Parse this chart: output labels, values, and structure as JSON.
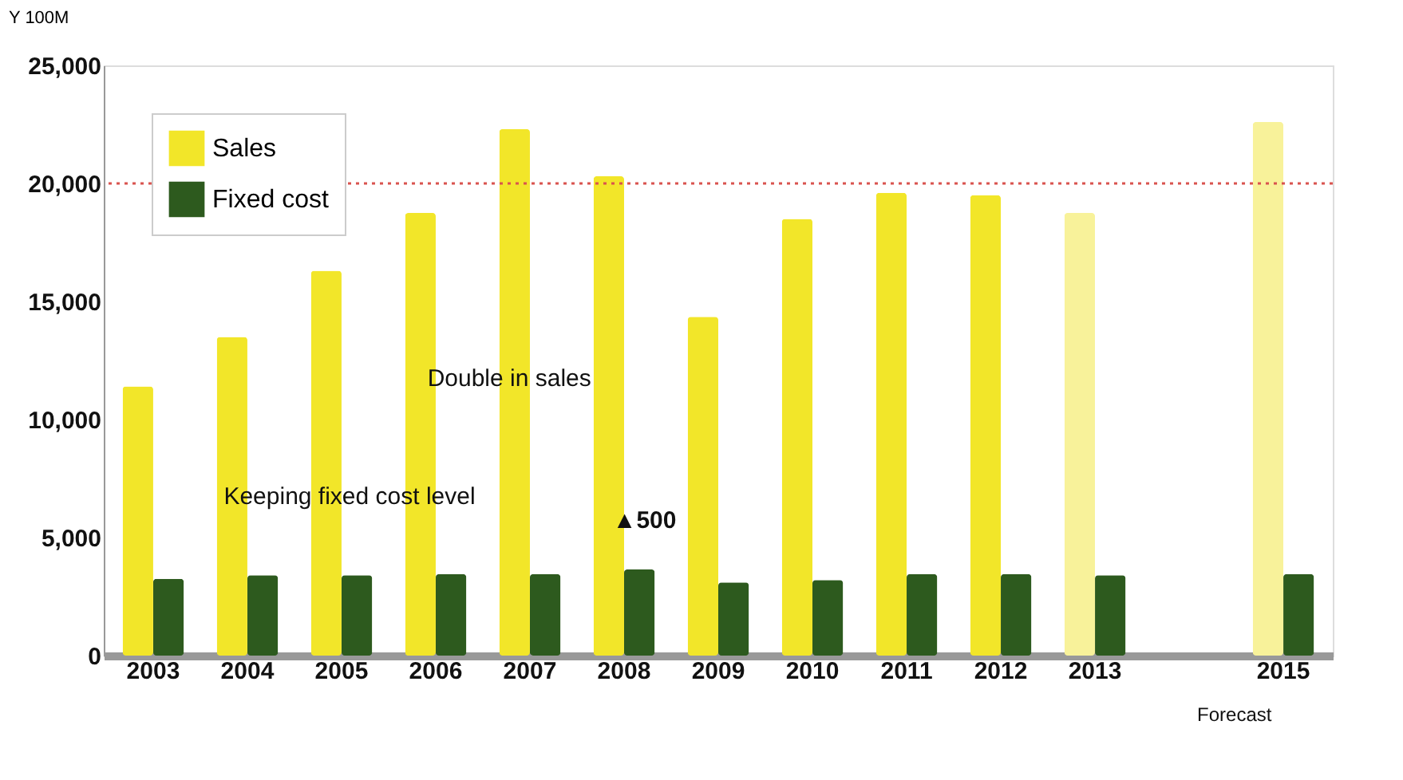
{
  "chart_data": {
    "type": "bar",
    "ylabel": "Y 100M",
    "categories": [
      "2003",
      "2004",
      "2005",
      "2006",
      "2007",
      "2008",
      "2009",
      "2010",
      "2011",
      "2012",
      "2013",
      null,
      "2015"
    ],
    "series": [
      {
        "name": "Sales",
        "color": "#f2e629",
        "colors": [
          "#f2e629",
          "#f2e629",
          "#f2e629",
          "#f2e629",
          "#f2e629",
          "#f2e629",
          "#f2e629",
          "#f2e629",
          "#f2e629",
          "#f2e629",
          "#f8f29a",
          null,
          "#f8f29a"
        ],
        "values": [
          11400,
          13500,
          16300,
          18750,
          22300,
          20300,
          14350,
          18500,
          19600,
          19500,
          18750,
          null,
          22600
        ]
      },
      {
        "name": "Fixed cost",
        "color": "#2d5a1e",
        "values": [
          3250,
          3400,
          3400,
          3450,
          3450,
          3650,
          3100,
          3200,
          3450,
          3450,
          3400,
          null,
          3450
        ]
      }
    ],
    "ylim": [
      0,
      25000
    ],
    "yticks": [
      {
        "value": 0,
        "label": "0"
      },
      {
        "value": 5000,
        "label": "5,000"
      },
      {
        "value": 10000,
        "label": "10,000"
      },
      {
        "value": 15000,
        "label": "15,000"
      },
      {
        "value": 20000,
        "label": "20,000"
      },
      {
        "value": 25000,
        "label": "25,000"
      }
    ],
    "ref_lines": [
      {
        "axis": "y",
        "value": 20000,
        "color": "#d9534f",
        "line_style": "dotted"
      }
    ],
    "annotations": [
      "Double in sales",
      "Keeping fixed cost level",
      "▲500",
      "Forecast"
    ],
    "legend": "top left",
    "grid": false
  }
}
